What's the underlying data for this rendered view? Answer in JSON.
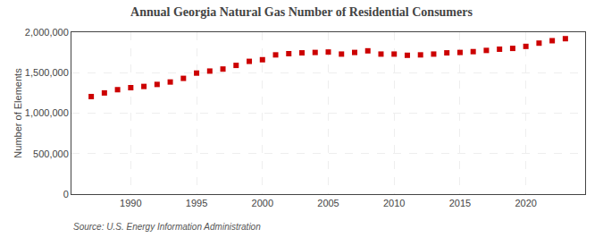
{
  "chart_data": {
    "type": "scatter",
    "title": "Annual Georgia Natural Gas Number of Residential Consumers",
    "ylabel": "Number of Elements",
    "annotations": [
      "Source: U.S. Energy Information Administration"
    ],
    "x": [
      1987,
      1988,
      1989,
      1990,
      1991,
      1992,
      1993,
      1994,
      1995,
      1996,
      1997,
      1998,
      1999,
      2000,
      2001,
      2002,
      2003,
      2004,
      2005,
      2006,
      2007,
      2008,
      2009,
      2010,
      2011,
      2012,
      2013,
      2014,
      2015,
      2016,
      2017,
      2018,
      2019,
      2020,
      2021,
      2022,
      2023
    ],
    "values": [
      1205000,
      1250000,
      1290000,
      1315000,
      1330000,
      1355000,
      1385000,
      1430000,
      1495000,
      1520000,
      1545000,
      1590000,
      1640000,
      1660000,
      1720000,
      1735000,
      1745000,
      1750000,
      1755000,
      1730000,
      1750000,
      1770000,
      1730000,
      1730000,
      1715000,
      1720000,
      1730000,
      1745000,
      1750000,
      1760000,
      1775000,
      1790000,
      1800000,
      1825000,
      1865000,
      1895000,
      1920000
    ],
    "color": "#cc0000",
    "marker": "square",
    "xlim": [
      1985.5,
      2024.5
    ],
    "xticks": [
      1990,
      1995,
      2000,
      2005,
      2010,
      2015,
      2020
    ],
    "ylim": [
      0,
      2000000
    ],
    "yticks": [
      0,
      {
        "value": 500000,
        "label": "500,000"
      },
      {
        "value": 1000000,
        "label": "1,000,000"
      },
      {
        "value": 1500000,
        "label": "1,500,000"
      },
      {
        "value": 2000000,
        "label": "2,000,000"
      }
    ],
    "grid": true
  }
}
